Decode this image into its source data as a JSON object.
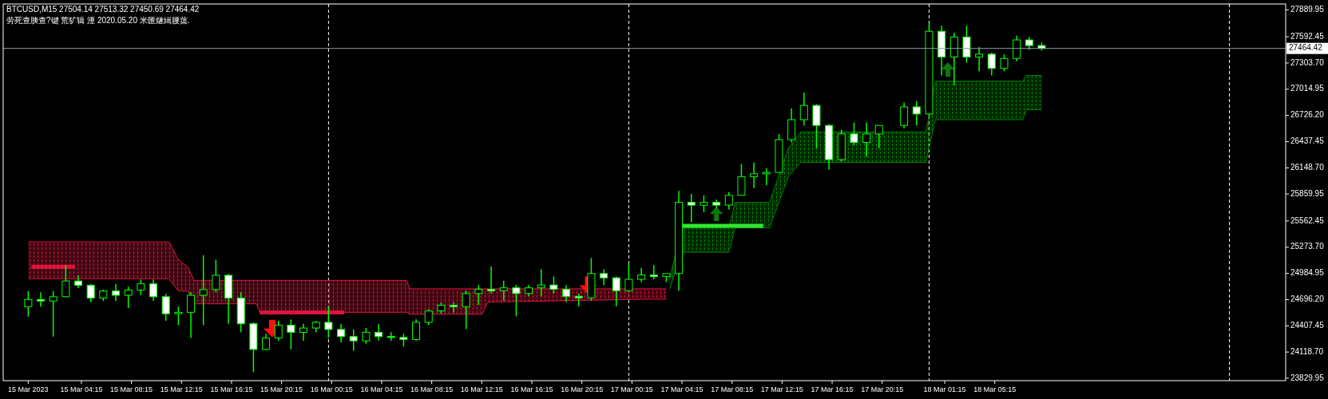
{
  "chart_data": {
    "type": "candlestick",
    "title": "BTCUSD,M15  27504.14 27513.32 27450.69 27464.42",
    "subtitle": "劳死查胰查?键 荒犷辑 湮 2020.05.20 米匯燧緝腰蕖.",
    "color": "#00ff00",
    "x": [
      "2023-03-15T00:00",
      "2023-03-15T01:00",
      "2023-03-15T02:00",
      "2023-03-15T03:00",
      "2023-03-15T04:00",
      "2023-03-15T05:00",
      "2023-03-15T06:00",
      "2023-03-15T07:00",
      "2023-03-15T08:00",
      "2023-03-15T09:00",
      "2023-03-15T10:00",
      "2023-03-15T11:00",
      "2023-03-15T12:00",
      "2023-03-15T13:00",
      "2023-03-15T14:00",
      "2023-03-15T15:00",
      "2023-03-15T16:00",
      "2023-03-15T17:00",
      "2023-03-15T18:00",
      "2023-03-15T19:00",
      "2023-03-15T20:00",
      "2023-03-15T21:00",
      "2023-03-15T22:00",
      "2023-03-15T23:00",
      "2023-03-16T00:00",
      "2023-03-16T01:00",
      "2023-03-16T02:00",
      "2023-03-16T03:00",
      "2023-03-16T04:00",
      "2023-03-16T05:00",
      "2023-03-16T06:00",
      "2023-03-16T07:00",
      "2023-03-16T08:00",
      "2023-03-16T09:00",
      "2023-03-16T10:00",
      "2023-03-16T11:00",
      "2023-03-16T12:00",
      "2023-03-16T13:00",
      "2023-03-16T14:00",
      "2023-03-16T15:00",
      "2023-03-16T16:00",
      "2023-03-16T17:00",
      "2023-03-16T18:00",
      "2023-03-16T19:00",
      "2023-03-16T20:00",
      "2023-03-16T21:00",
      "2023-03-16T22:00",
      "2023-03-16T23:00",
      "2023-03-17T00:00",
      "2023-03-17T01:00",
      "2023-03-17T02:00",
      "2023-03-17T03:00",
      "2023-03-17T04:00",
      "2023-03-17T05:00",
      "2023-03-17T06:00",
      "2023-03-17T07:00",
      "2023-03-17T08:00",
      "2023-03-17T09:00",
      "2023-03-17T10:00",
      "2023-03-17T11:00",
      "2023-03-17T12:00",
      "2023-03-17T13:00",
      "2023-03-17T14:00",
      "2023-03-17T15:00",
      "2023-03-17T16:00",
      "2023-03-17T17:00",
      "2023-03-17T18:00",
      "2023-03-17T19:00",
      "2023-03-17T20:00",
      "2023-03-17T22:00",
      "2023-03-17T23:00",
      "2023-03-18T00:00",
      "2023-03-18T01:00",
      "2023-03-18T02:00",
      "2023-03-18T03:00",
      "2023-03-18T04:00",
      "2023-03-18T05:00",
      "2023-03-18T06:00",
      "2023-03-18T07:00",
      "2023-03-18T08:00",
      "2023-03-18T09:00"
    ],
    "ohlc": [
      [
        24619,
        24791,
        24509,
        24697
      ],
      [
        24697,
        24776,
        24619,
        24681
      ],
      [
        24681,
        24791,
        24289,
        24728
      ],
      [
        24728,
        25074,
        24720,
        24901
      ],
      [
        24901,
        24964,
        24823,
        24854
      ],
      [
        24854,
        24870,
        24666,
        24713
      ],
      [
        24713,
        24807,
        24681,
        24791
      ],
      [
        24791,
        24870,
        24681,
        24744
      ],
      [
        24744,
        24838,
        24603,
        24801
      ],
      [
        24801,
        24917,
        24744,
        24870
      ],
      [
        24870,
        24917,
        24681,
        24728
      ],
      [
        24728,
        24760,
        24462,
        24540
      ],
      [
        24540,
        24619,
        24414,
        24556
      ],
      [
        24556,
        24776,
        24273,
        24744
      ],
      [
        24744,
        25184,
        24414,
        24807
      ],
      [
        24807,
        25137,
        24776,
        24964
      ],
      [
        24964,
        24980,
        24430,
        24713
      ],
      [
        24713,
        24776,
        24336,
        24430
      ],
      [
        24430,
        24446,
        23896,
        24147
      ],
      [
        24147,
        24320,
        24140,
        24273
      ],
      [
        24273,
        24462,
        24242,
        24414
      ],
      [
        24414,
        24477,
        24147,
        24336
      ],
      [
        24336,
        24430,
        24242,
        24383
      ],
      [
        24383,
        24462,
        24336,
        24446
      ],
      [
        24446,
        24619,
        24273,
        24367
      ],
      [
        24367,
        24430,
        24226,
        24289
      ],
      [
        24289,
        24367,
        24132,
        24242
      ],
      [
        24242,
        24383,
        24210,
        24336
      ],
      [
        24336,
        24430,
        24242,
        24289
      ],
      [
        24289,
        24336,
        24242,
        24279
      ],
      [
        24279,
        24320,
        24179,
        24257
      ],
      [
        24257,
        24477,
        24242,
        24446
      ],
      [
        24446,
        24587,
        24414,
        24571
      ],
      [
        24571,
        24666,
        24540,
        24634
      ],
      [
        24634,
        24666,
        24556,
        24619
      ],
      [
        24619,
        24794,
        24370,
        24763
      ],
      [
        24763,
        24857,
        24637,
        24810
      ],
      [
        24810,
        25061,
        24763,
        24794
      ],
      [
        24794,
        24904,
        24684,
        24826
      ],
      [
        24826,
        24857,
        24512,
        24763
      ],
      [
        24763,
        24857,
        24732,
        24826
      ],
      [
        24826,
        25030,
        24732,
        24857
      ],
      [
        24857,
        24951,
        24763,
        24810
      ],
      [
        24810,
        24857,
        24669,
        24732
      ],
      [
        24732,
        24763,
        24622,
        24716
      ],
      [
        24716,
        25155,
        24684,
        24983
      ],
      [
        24983,
        25030,
        24857,
        24936
      ],
      [
        24936,
        24951,
        24622,
        24794
      ],
      [
        24794,
        25093,
        24780,
        24920
      ],
      [
        24920,
        25046,
        24889,
        24967
      ],
      [
        24967,
        25077,
        24920,
        24951
      ],
      [
        24951,
        24983,
        24889,
        24983
      ],
      [
        24983,
        25894,
        24794,
        25768
      ],
      [
        25768,
        25862,
        25548,
        25737
      ],
      [
        25737,
        25846,
        25658,
        25768
      ],
      [
        25768,
        25800,
        25705,
        25737
      ],
      [
        25737,
        25878,
        25690,
        25846
      ],
      [
        25846,
        26192,
        25846,
        26051
      ],
      [
        26051,
        26208,
        25925,
        26082
      ],
      [
        26082,
        26145,
        25957,
        26098
      ],
      [
        26098,
        26522,
        26098,
        26459
      ],
      [
        26459,
        26805,
        26428,
        26679
      ],
      [
        26679,
        26977,
        26616,
        26836
      ],
      [
        26836,
        26850,
        26365,
        26616
      ],
      [
        26616,
        26630,
        26129,
        26239
      ],
      [
        26239,
        26569,
        26220,
        26522
      ],
      [
        26522,
        26648,
        26396,
        26428
      ],
      [
        26428,
        26648,
        26271,
        26522
      ],
      [
        26522,
        26616,
        26365,
        26616
      ],
      [
        26616,
        26867,
        26585,
        26820
      ],
      [
        26820,
        26883,
        26616,
        26742
      ],
      [
        26742,
        27747,
        26710,
        27653
      ],
      [
        27653,
        27715,
        27166,
        27370
      ],
      [
        27370,
        27637,
        27056,
        27590
      ],
      [
        27590,
        27715,
        27307,
        27370
      ],
      [
        27370,
        27480,
        27213,
        27401
      ],
      [
        27401,
        27417,
        27166,
        27244
      ],
      [
        27244,
        27401,
        27213,
        27354
      ],
      [
        27354,
        27605,
        27323,
        27558
      ],
      [
        27558,
        27590,
        27448,
        27496
      ],
      [
        27496,
        27530,
        27440,
        27464
      ]
    ],
    "series": [
      {
        "type": "area",
        "color": "#dc143c",
        "x": [
          "2023-03-15T00:00",
          "2023-03-15T11:15",
          "2023-03-15T12:00",
          "2023-03-15T12:45",
          "2023-03-15T13:15",
          "2023-03-15T18:15",
          "2023-03-15T18:30",
          "2023-03-16T06:15",
          "2023-03-16T06:30",
          "2023-03-16T12:15",
          "2023-03-16T12:45",
          "2023-03-17T01:15",
          "2023-03-17T03:00"
        ],
        "values": [
          25332,
          25332,
          25137,
          25058,
          24908,
          24908,
          24908,
          24908,
          24815,
          24815,
          24815,
          24815,
          24815
        ]
      },
      {
        "type": "line",
        "color": "#dc143c",
        "x": [
          "2023-03-15T00:00",
          "2023-03-15T11:15",
          "2023-03-15T12:00",
          "2023-03-15T12:45",
          "2023-03-15T13:15",
          "2023-03-15T18:15",
          "2023-03-15T18:30",
          "2023-03-16T06:15",
          "2023-03-16T06:30",
          "2023-03-16T12:15",
          "2023-03-16T12:45",
          "2023-03-17T01:15",
          "2023-03-17T03:00"
        ],
        "values": [
          24926,
          24926,
          24791,
          24791,
          24650,
          24650,
          24556,
          24556,
          24534,
          24534,
          24669,
          24700,
          24700
        ]
      },
      {
        "type": "area",
        "color": "#008000",
        "x": [
          "2023-03-17T03:15",
          "2023-03-17T04:15",
          "2023-03-17T08:00",
          "2023-03-17T08:30",
          "2023-03-17T11:15",
          "2023-03-17T12:45",
          "2023-03-17T13:45",
          "2023-03-17T23:45",
          "2023-03-18T00:30",
          "2023-03-18T07:30",
          "2023-03-18T07:45",
          "2023-03-18T09:00"
        ],
        "values": [
          24920,
          25486,
          25486,
          25768,
          25768,
          26365,
          26544,
          26544,
          27103,
          27103,
          27166,
          27166
        ]
      },
      {
        "type": "line",
        "color": "#008000",
        "x": [
          "2023-03-17T03:15",
          "2023-03-17T04:15",
          "2023-03-17T08:00",
          "2023-03-17T08:30",
          "2023-03-17T11:15",
          "2023-03-17T12:45",
          "2023-03-17T13:45",
          "2023-03-17T23:45",
          "2023-03-18T00:30",
          "2023-03-18T07:30",
          "2023-03-18T07:45",
          "2023-03-18T09:00"
        ],
        "values": [
          24810,
          25218,
          25218,
          25486,
          25486,
          26051,
          26208,
          26208,
          26679,
          26679,
          26789,
          26789
        ]
      },
      {
        "type": "line",
        "color": "#dc143c",
        "x": [
          "2023-03-15T00:15",
          "2023-03-15T03:45"
        ],
        "values": [
          25058,
          25058
        ]
      },
      {
        "type": "line",
        "color": "#dc143c",
        "x": [
          "2023-03-15T18:30",
          "2023-03-16T01:15"
        ],
        "values": [
          24556,
          24556
        ]
      },
      {
        "type": "line",
        "color": "#32e632",
        "x": [
          "2023-03-17T04:15",
          "2023-03-17T10:45"
        ],
        "values": [
          25510,
          25510
        ]
      },
      {
        "type": "scatter",
        "color": "#ff1010",
        "x": [
          "2023-03-15T19:30",
          "2023-03-16T20:45"
        ],
        "values": [
          24377,
          24854
        ]
      },
      {
        "type": "scatter",
        "color": "#0a7a0a",
        "marker": "triangle",
        "x": [
          "2023-03-17T07:00",
          "2023-03-18T01:30"
        ],
        "values": [
          25642,
          27232
        ]
      }
    ],
    "xlim": [
      "2023-03-14T22:00",
      "2023-03-19T04:30"
    ],
    "ylim": [
      23803,
      27954
    ],
    "xticks": [
      {
        "value": "2023-03-15T00:00",
        "label": "15 Mar 2023"
      },
      {
        "value": "2023-03-15T04:15",
        "label": "15 Mar 04:15"
      },
      {
        "value": "2023-03-15T08:15",
        "label": "15 Mar 08:15"
      },
      {
        "value": "2023-03-15T12:15",
        "label": "15 Mar 12:15"
      },
      {
        "value": "2023-03-15T16:15",
        "label": "15 Mar 16:15"
      },
      {
        "value": "2023-03-15T20:15",
        "label": "15 Mar 20:15"
      },
      {
        "value": "2023-03-16T00:15",
        "label": "16 Mar 00:15"
      },
      {
        "value": "2023-03-16T04:15",
        "label": "16 Mar 04:15"
      },
      {
        "value": "2023-03-16T08:15",
        "label": "16 Mar 08:15"
      },
      {
        "value": "2023-03-16T12:15",
        "label": "16 Mar 12:15"
      },
      {
        "value": "2023-03-16T16:15",
        "label": "16 Mar 16:15"
      },
      {
        "value": "2023-03-16T20:15",
        "label": "16 Mar 20:15"
      },
      {
        "value": "2023-03-17T00:15",
        "label": "17 Mar 00:15"
      },
      {
        "value": "2023-03-17T04:15",
        "label": "17 Mar 04:15"
      },
      {
        "value": "2023-03-17T08:15",
        "label": "17 Mar 08:15"
      },
      {
        "value": "2023-03-17T12:15",
        "label": "17 Mar 12:15"
      },
      {
        "value": "2023-03-17T16:15",
        "label": "17 Mar 16:15"
      },
      {
        "value": "2023-03-17T20:15",
        "label": "17 Mar 20:15"
      },
      {
        "value": "2023-03-18T01:15",
        "label": "18 Mar 01:15"
      },
      {
        "value": "2023-03-18T05:15",
        "label": "18 Mar 05:15"
      }
    ],
    "yticks": [
      27889.95,
      27592.45,
      {
        "value": 27303.7,
        "label": "27303.70"
      },
      27014.95,
      {
        "value": 26726.2,
        "label": "26726.20"
      },
      26437.45,
      {
        "value": 26148.7,
        "label": "26148.70"
      },
      25859.95,
      25562.45,
      {
        "value": 25273.7,
        "label": "25273.70"
      },
      24984.95,
      {
        "value": 24696.2,
        "label": "24696.20"
      },
      24407.45,
      {
        "value": 24118.7,
        "label": "24118.70"
      },
      23829.95
    ],
    "ref_lines": [
      {
        "axis": "x",
        "value": "2023-03-16T00:00",
        "color": "#ffffff",
        "line_style": "dashed"
      },
      {
        "axis": "x",
        "value": "2023-03-17T00:00",
        "color": "#ffffff",
        "line_style": "dashed"
      },
      {
        "axis": "x",
        "value": "2023-03-18T00:00",
        "color": "#ffffff",
        "line_style": "dashed"
      },
      {
        "axis": "x",
        "value": "2023-03-19T00:00",
        "color": "#ffffff",
        "line_style": "dashed"
      },
      {
        "axis": "y",
        "value": 27464.42,
        "label": "27464.42",
        "color": "#8c9aa8",
        "line_style": "solid"
      }
    ]
  }
}
